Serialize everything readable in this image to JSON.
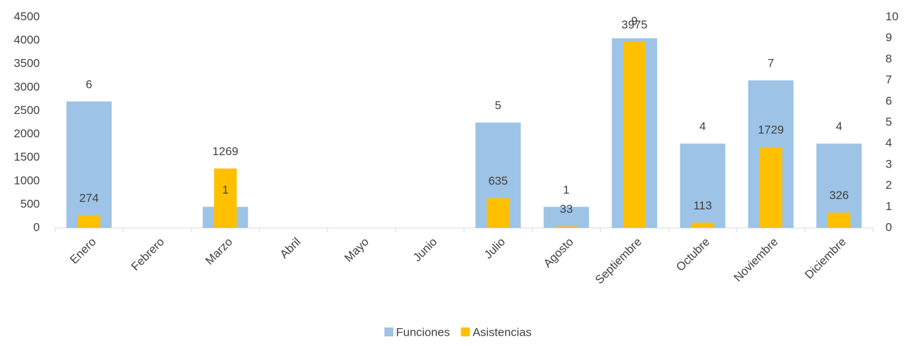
{
  "chart_data": {
    "type": "bar",
    "categories": [
      "Enero",
      "Febrero",
      "Marzo",
      "Abril",
      "Mayo",
      "Junio",
      "Julio",
      "Agosto",
      "Septiembre",
      "Octubre",
      "Noviembre",
      "Diciembre"
    ],
    "series": [
      {
        "name": "Funciones",
        "color": "#9dc3e6",
        "axis": "y2",
        "values": [
          6,
          null,
          1,
          null,
          null,
          null,
          5,
          1,
          9,
          4,
          7,
          4
        ]
      },
      {
        "name": "Asistencias",
        "color": "#ffc000",
        "values": [
          274,
          null,
          1269,
          null,
          null,
          null,
          635,
          33,
          3975,
          113,
          1729,
          326
        ]
      }
    ],
    "ylim": [
      0,
      4500
    ],
    "yticks": [
      0,
      500,
      1000,
      1500,
      2000,
      2500,
      3000,
      3500,
      4000,
      4500
    ],
    "y2lim": [
      0,
      10
    ],
    "y2ticks": [
      0,
      1,
      2,
      3,
      4,
      5,
      6,
      7,
      8,
      9,
      10
    ],
    "legend": "bottom"
  }
}
